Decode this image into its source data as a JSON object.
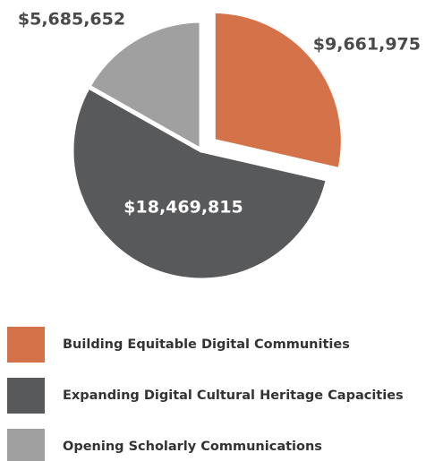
{
  "chart_data": {
    "type": "pie",
    "categories": [
      "Building Equitable Digital Communities",
      "Expanding Digital Cultural Heritage Capacities",
      "Opening Scholarly Communications"
    ],
    "values": [
      9661975,
      18469815,
      5685652
    ],
    "value_labels": [
      "$9,661,975",
      "$18,469,815",
      "$5,685,652"
    ],
    "colors": [
      "#d4734a",
      "#58595b",
      "#a0a0a0"
    ]
  }
}
